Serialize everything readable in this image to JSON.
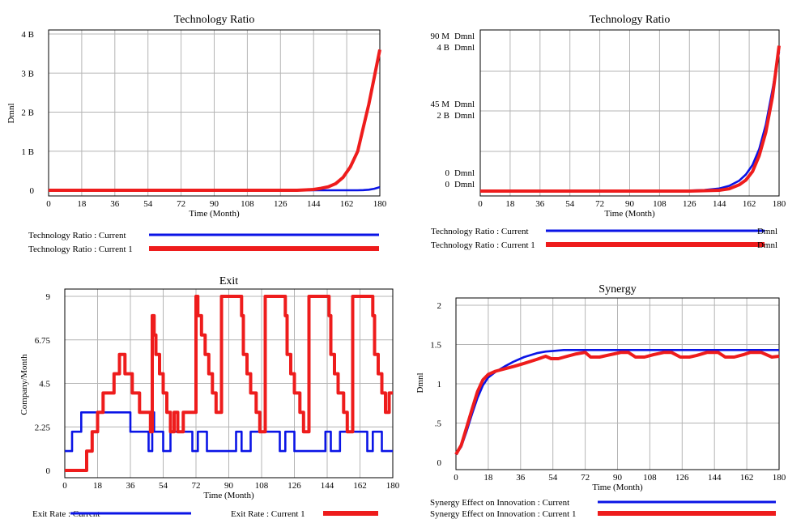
{
  "colors": {
    "current": "#0a14e6",
    "current1": "#ee1c1c",
    "grid": "#b4b4b4"
  },
  "chart_data": [
    {
      "type": "line",
      "title": "Technology Ratio",
      "xlabel": "Time (Month)",
      "ylabel": "Dmnl",
      "xlim": [
        0,
        180
      ],
      "ylim": [
        0,
        4000000000
      ],
      "x_ticks": [
        "0",
        "18",
        "36",
        "54",
        "72",
        "90",
        "108",
        "126",
        "144",
        "162",
        "180"
      ],
      "y_ticks": [
        "0",
        "1 B",
        "2 B",
        "3 B",
        "4 B"
      ],
      "x": [
        0,
        90,
        108,
        126,
        135,
        140,
        144,
        148,
        152,
        156,
        160,
        164,
        168,
        171,
        174,
        177,
        180
      ],
      "series": [
        {
          "name": "Technology Ratio : Current",
          "color": "current",
          "values": [
            0,
            0,
            0,
            0,
            0,
            0,
            0,
            0,
            0,
            0,
            0,
            0,
            0,
            5000000,
            15000000,
            40000000,
            80000000
          ]
        },
        {
          "name": "Technology Ratio : Current 1",
          "color": "current1",
          "values": [
            0,
            0,
            0,
            0,
            0,
            10000000,
            20000000,
            50000000,
            90000000,
            170000000,
            330000000,
            600000000,
            1000000000,
            1600000000,
            2200000000,
            2900000000,
            3600000000
          ]
        }
      ],
      "legend": "bottom"
    },
    {
      "type": "line",
      "title": "Technology Ratio",
      "xlabel": "Time (Month)",
      "xlim": [
        0,
        180
      ],
      "x_ticks": [
        "0",
        "18",
        "36",
        "54",
        "72",
        "90",
        "108",
        "126",
        "144",
        "162",
        "180"
      ],
      "y_tick_rows": [
        {
          "left": "90 M",
          "right": "Dmnl"
        },
        {
          "left": "4 B",
          "right": "Dmnl"
        },
        {
          "left": "45 M",
          "right": "Dmnl"
        },
        {
          "left": "2 B",
          "right": "Dmnl"
        },
        {
          "left": "0",
          "right": "Dmnl"
        },
        {
          "left": "0",
          "right": "Dmnl"
        }
      ],
      "x": [
        0,
        90,
        108,
        126,
        135,
        144,
        150,
        156,
        160,
        164,
        168,
        172,
        176,
        180
      ],
      "series": [
        {
          "name": "Technology Ratio : Current",
          "unit": "Dmnl",
          "color": "current",
          "ylim": [
            0,
            90000000
          ],
          "values": [
            0,
            0,
            0,
            300000,
            600000,
            1500000,
            3000000,
            6000000,
            9500000,
            15000000,
            24000000,
            38000000,
            58000000,
            80000000
          ]
        },
        {
          "name": "Technology Ratio : Current 1",
          "unit": "Dmnl",
          "color": "current1",
          "ylim": [
            0,
            4000000000
          ],
          "values": [
            0,
            0,
            0,
            0,
            10000000,
            20000000,
            60000000,
            160000000,
            280000000,
            500000000,
            900000000,
            1500000000,
            2400000000,
            3700000000
          ]
        }
      ],
      "legend": "bottom"
    },
    {
      "type": "line",
      "title": "Exit",
      "xlabel": "Time (Month)",
      "ylabel": "Company/Month",
      "xlim": [
        0,
        180
      ],
      "ylim": [
        0,
        9
      ],
      "x_ticks": [
        "0",
        "18",
        "36",
        "54",
        "72",
        "90",
        "108",
        "126",
        "144",
        "162",
        "180"
      ],
      "y_ticks": [
        "0",
        "2.25",
        "4.5",
        "6.75",
        "9"
      ],
      "series": [
        {
          "name": "Exit Rate : Current",
          "color": "current",
          "x": [
            0,
            4,
            4,
            9,
            9,
            36,
            36,
            46,
            46,
            48,
            48,
            49,
            49,
            54,
            54,
            58,
            58,
            70,
            70,
            73,
            73,
            78,
            78,
            94,
            94,
            97,
            97,
            102,
            102,
            118,
            118,
            121,
            121,
            126,
            126,
            143,
            143,
            146,
            146,
            151,
            151,
            166,
            166,
            169,
            169,
            174,
            174,
            180
          ],
          "values": [
            1,
            1,
            2,
            2,
            3,
            3,
            2,
            2,
            1,
            1,
            3,
            3,
            2,
            2,
            1,
            1,
            2,
            2,
            1,
            1,
            2,
            2,
            1,
            1,
            2,
            2,
            1,
            1,
            2,
            2,
            1,
            1,
            2,
            2,
            1,
            1,
            2,
            2,
            1,
            1,
            2,
            2,
            1,
            1,
            2,
            2,
            1,
            1
          ]
        },
        {
          "name": "Exit Rate : Current 1",
          "color": "current1",
          "x": [
            0,
            12,
            12,
            15,
            15,
            18,
            18,
            21,
            21,
            27,
            27,
            30,
            30,
            33,
            33,
            37,
            37,
            41,
            41,
            47,
            47,
            48,
            48,
            49,
            49,
            50,
            50,
            52,
            52,
            54,
            54,
            56,
            56,
            58,
            58,
            60,
            60,
            62,
            62,
            65,
            65,
            72,
            72,
            73,
            73,
            75,
            75,
            77,
            77,
            79,
            79,
            81,
            81,
            83,
            83,
            86,
            86,
            97,
            97,
            98,
            98,
            100,
            100,
            102,
            102,
            105,
            105,
            107,
            107,
            110,
            110,
            121,
            121,
            122,
            122,
            124,
            124,
            126,
            126,
            129,
            129,
            131,
            131,
            134,
            134,
            145,
            145,
            146,
            146,
            148,
            148,
            150,
            150,
            153,
            153,
            155,
            155,
            158,
            158,
            169,
            169,
            170,
            170,
            172,
            172,
            174,
            174,
            176,
            176,
            178,
            178,
            180
          ],
          "values": [
            0,
            0,
            1,
            1,
            2,
            2,
            3,
            3,
            4,
            4,
            5,
            5,
            6,
            6,
            5,
            5,
            4,
            4,
            3,
            3,
            2,
            2,
            8,
            8,
            7,
            7,
            6,
            6,
            5,
            5,
            4,
            4,
            3,
            3,
            2,
            2,
            3,
            3,
            2,
            2,
            3,
            3,
            9,
            9,
            8,
            8,
            7,
            7,
            6,
            6,
            5,
            5,
            4,
            4,
            3,
            3,
            9,
            9,
            8,
            8,
            6,
            6,
            5,
            5,
            4,
            4,
            3,
            3,
            2,
            2,
            9,
            9,
            8,
            8,
            6,
            6,
            5,
            5,
            4,
            4,
            3,
            3,
            2,
            2,
            9,
            9,
            8,
            8,
            6,
            6,
            5,
            5,
            4,
            4,
            3,
            3,
            2,
            2,
            9,
            9,
            8,
            8,
            6,
            6,
            5,
            5,
            4,
            4,
            3,
            3,
            4,
            4
          ]
        }
      ],
      "legend": "bottom"
    },
    {
      "type": "line",
      "title": "Synergy",
      "xlabel": "Time (Month)",
      "ylabel": "Dmnl",
      "xlim": [
        0,
        180
      ],
      "ylim": [
        0,
        2
      ],
      "x_ticks": [
        "0",
        "18",
        "36",
        "54",
        "72",
        "90",
        "108",
        "126",
        "144",
        "162",
        "180"
      ],
      "y_ticks": [
        "0",
        ".5",
        "1",
        "1.5",
        "2"
      ],
      "series": [
        {
          "name": "Synergy Effect on Innovation : Current",
          "color": "current",
          "x": [
            0,
            3,
            6,
            9,
            12,
            15,
            18,
            22,
            27,
            32,
            38,
            45,
            50,
            55,
            60,
            70,
            80,
            100,
            120,
            140,
            160,
            180
          ],
          "values": [
            0.1,
            0.2,
            0.4,
            0.62,
            0.82,
            0.98,
            1.08,
            1.15,
            1.22,
            1.28,
            1.34,
            1.39,
            1.41,
            1.42,
            1.43,
            1.43,
            1.43,
            1.43,
            1.43,
            1.43,
            1.43,
            1.43
          ]
        },
        {
          "name": "Synergy Effect on Innovation : Current 1",
          "color": "current1",
          "x": [
            0,
            3,
            6,
            9,
            12,
            15,
            18,
            22,
            27,
            32,
            38,
            45,
            50,
            53,
            57,
            62,
            67,
            72,
            75,
            80,
            86,
            92,
            96,
            100,
            105,
            110,
            116,
            120,
            125,
            130,
            134,
            140,
            146,
            150,
            155,
            160,
            164,
            170,
            176,
            180
          ],
          "values": [
            0.1,
            0.22,
            0.45,
            0.68,
            0.9,
            1.05,
            1.12,
            1.16,
            1.19,
            1.22,
            1.26,
            1.31,
            1.35,
            1.32,
            1.32,
            1.35,
            1.38,
            1.4,
            1.34,
            1.34,
            1.37,
            1.4,
            1.4,
            1.34,
            1.34,
            1.37,
            1.4,
            1.4,
            1.34,
            1.34,
            1.36,
            1.4,
            1.4,
            1.34,
            1.34,
            1.37,
            1.4,
            1.4,
            1.34,
            1.35
          ]
        }
      ],
      "legend": "bottom"
    }
  ]
}
